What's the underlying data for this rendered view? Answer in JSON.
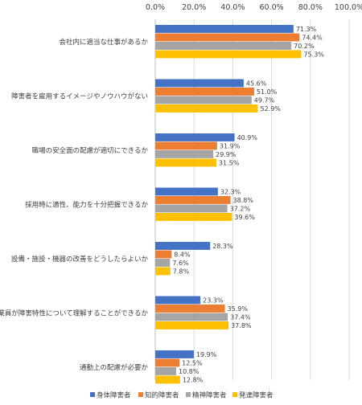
{
  "chart_data": {
    "type": "bar",
    "orientation": "horizontal",
    "title": "",
    "xlabel": "",
    "ylabel": "",
    "xlim": [
      0,
      100
    ],
    "x_ticks": [
      "0.0%",
      "20.0%",
      "40.0%",
      "60.0%",
      "80.0%",
      "100.0%"
    ],
    "x_tick_values": [
      0,
      20,
      40,
      60,
      80,
      100
    ],
    "x_axis_position": "top",
    "grid": true,
    "legend_position": "bottom",
    "categories": [
      "会社内に適当な仕事があるか",
      "障害者を雇用するイメージやノウハウがない",
      "職場の安全面の配慮が適切にできるか",
      "採用時に適性、能力を十分把握できるか",
      "設備・施設・機器の改善をどうしたらよいか",
      "従業員が障害特性について理解することができるか",
      "通勤上の配慮が必要か"
    ],
    "series": [
      {
        "name": "身体障害者",
        "color": "#4472C4",
        "values": [
          71.3,
          45.6,
          40.9,
          32.3,
          28.3,
          23.3,
          19.9
        ],
        "labels": [
          "71.3%",
          "45.6%",
          "40.9%",
          "32.3%",
          "28.3%",
          "23.3%",
          "19.9%"
        ]
      },
      {
        "name": "知的障害者",
        "color": "#ED7D31",
        "values": [
          74.4,
          51.0,
          31.9,
          38.8,
          8.4,
          35.9,
          12.5
        ],
        "labels": [
          "74.4%",
          "51.0%",
          "31.9%",
          "38.8%",
          "8.4%",
          "35.9%",
          "12.5%"
        ]
      },
      {
        "name": "精神障害者",
        "color": "#A5A5A5",
        "values": [
          70.2,
          49.7,
          29.9,
          37.2,
          7.6,
          37.4,
          10.8
        ],
        "labels": [
          "70.2%",
          "49.7%",
          "29.9%",
          "37.2%",
          "7.6%",
          "37.4%",
          "10.8%"
        ]
      },
      {
        "name": "発達障害者",
        "color": "#FFC000",
        "values": [
          75.3,
          52.9,
          31.5,
          39.6,
          7.8,
          37.8,
          12.8
        ],
        "labels": [
          "75.3%",
          "52.9%",
          "31.5%",
          "39.6%",
          "7.8%",
          "37.8%",
          "12.8%"
        ]
      }
    ]
  }
}
